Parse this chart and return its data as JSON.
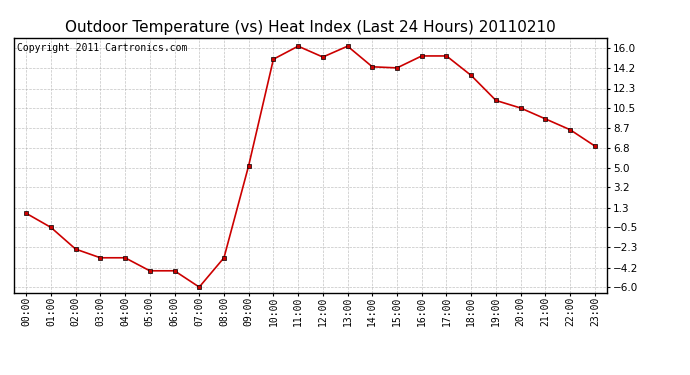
{
  "title": "Outdoor Temperature (vs) Heat Index (Last 24 Hours) 20110210",
  "copyright_text": "Copyright 2011 Cartronics.com",
  "x_labels": [
    "00:00",
    "01:00",
    "02:00",
    "03:00",
    "04:00",
    "05:00",
    "06:00",
    "07:00",
    "08:00",
    "09:00",
    "10:00",
    "11:00",
    "12:00",
    "13:00",
    "14:00",
    "15:00",
    "16:00",
    "17:00",
    "18:00",
    "19:00",
    "20:00",
    "21:00",
    "22:00",
    "23:00"
  ],
  "y_values": [
    0.8,
    -0.5,
    -2.5,
    -3.3,
    -3.3,
    -4.5,
    -4.5,
    -6.0,
    -3.3,
    5.2,
    15.0,
    16.2,
    15.2,
    16.2,
    14.3,
    14.2,
    15.3,
    15.3,
    13.5,
    11.2,
    10.5,
    9.5,
    8.5,
    7.0
  ],
  "yticks": [
    16.0,
    14.2,
    12.3,
    10.5,
    8.7,
    6.8,
    5.0,
    3.2,
    1.3,
    -0.5,
    -2.3,
    -4.2,
    -6.0
  ],
  "ylim": [
    -6.5,
    17.0
  ],
  "line_color": "#cc0000",
  "marker_color": "#cc0000",
  "bg_color": "#ffffff",
  "grid_color": "#aaaaaa",
  "title_fontsize": 11,
  "copyright_fontsize": 7
}
